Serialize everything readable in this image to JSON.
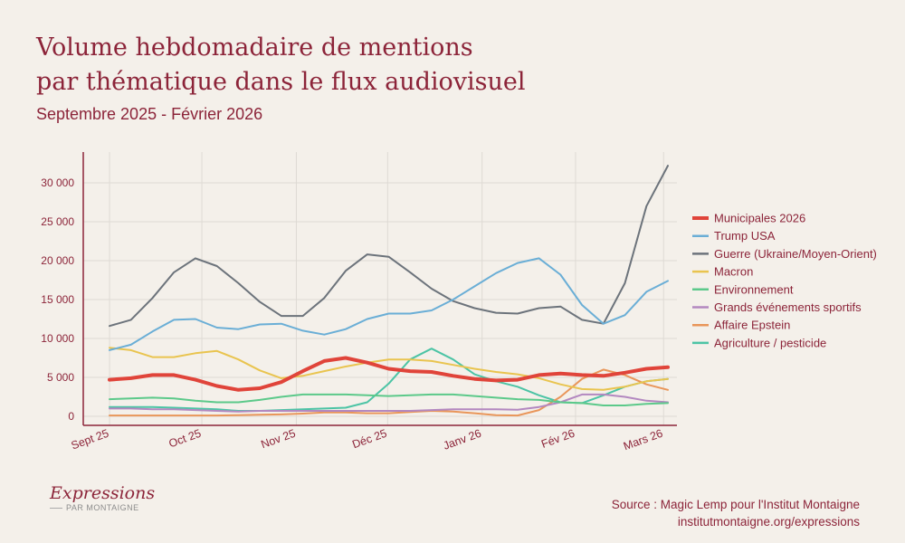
{
  "title_line1": "Volume hebdomadaire de mentions",
  "title_line2": "par thématique dans le flux audiovisuel",
  "subtitle": "Septembre 2025 - Février 2026",
  "source_line1": "Source : Magic Lemp pour l'Institut Montaigne",
  "source_line2": "institutmontaigne.org/expressions",
  "logo": {
    "main": "Expressions",
    "sub": "PAR MONTAIGNE"
  },
  "chart_data": {
    "type": "line",
    "x_tick_labels": [
      "Sept 25",
      "Oct 25",
      "Nov 25",
      "Déc 25",
      "Janv 26",
      "Fév 26",
      "Mars 26"
    ],
    "x_tick_positions": [
      0,
      4.3,
      8.7,
      12.95,
      17.35,
      21.7,
      25.8
    ],
    "y_ticks": [
      0,
      5000,
      10000,
      15000,
      20000,
      25000,
      30000
    ],
    "y_tick_labels": [
      "0",
      "5 000",
      "10 000",
      "15 000",
      "20 000",
      "25 000",
      "30 000"
    ],
    "ylim": [
      0,
      32500
    ],
    "grid": true,
    "legend_position": "right",
    "x_unit": "week index (weekly points, Sept 2025 – early March 2026)",
    "series": [
      {
        "name": "Municipales 2026",
        "color": "#e0443a",
        "emphasis": true,
        "values": [
          4700,
          4900,
          5300,
          5300,
          4700,
          3900,
          3400,
          3600,
          4400,
          5800,
          7100,
          7500,
          6900,
          6100,
          5800,
          5700,
          5200,
          4800,
          4600,
          4700,
          5300,
          5500,
          5300,
          5200,
          5600,
          6100,
          6300
        ]
      },
      {
        "name": "Trump USA",
        "color": "#6aaed6",
        "values": [
          8500,
          9200,
          10900,
          12400,
          12500,
          11400,
          11200,
          11800,
          11900,
          11000,
          10500,
          11200,
          12500,
          13200,
          13200,
          13600,
          15000,
          16700,
          18400,
          19700,
          20300,
          18200,
          14300,
          11900,
          13000,
          16000,
          17400
        ]
      },
      {
        "name": "Guerre (Ukraine/Moyen-Orient)",
        "color": "#6c737b",
        "values": [
          11600,
          12400,
          15200,
          18500,
          20300,
          19300,
          17100,
          14700,
          12900,
          12900,
          15200,
          18700,
          20800,
          20500,
          18500,
          16400,
          14800,
          13900,
          13300,
          13200,
          13900,
          14100,
          12400,
          11900,
          17100,
          27000,
          32200
        ]
      },
      {
        "name": "Macron",
        "color": "#e9c44f",
        "values": [
          8800,
          8500,
          7600,
          7600,
          8100,
          8400,
          7300,
          5900,
          4900,
          5200,
          5800,
          6400,
          6900,
          7300,
          7300,
          7100,
          6600,
          6100,
          5700,
          5400,
          4900,
          4100,
          3500,
          3400,
          3800,
          4500,
          4800
        ]
      },
      {
        "name": "Environnement",
        "color": "#5cc98a",
        "values": [
          2200,
          2300,
          2400,
          2300,
          2000,
          1800,
          1800,
          2100,
          2500,
          2800,
          2800,
          2800,
          2700,
          2600,
          2700,
          2800,
          2800,
          2600,
          2400,
          2200,
          2100,
          1800,
          1700,
          1400,
          1400,
          1600,
          1700
        ]
      },
      {
        "name": "Grands événements sportifs",
        "color": "#b388c0",
        "values": [
          1000,
          1000,
          900,
          900,
          800,
          700,
          600,
          700,
          700,
          700,
          700,
          700,
          700,
          700,
          700,
          800,
          900,
          900,
          900,
          850,
          1200,
          1800,
          2800,
          2800,
          2500,
          2000,
          1800
        ]
      },
      {
        "name": "Affaire Epstein",
        "color": "#e9965a",
        "values": [
          100,
          100,
          100,
          100,
          100,
          100,
          150,
          200,
          250,
          350,
          500,
          500,
          400,
          400,
          550,
          700,
          600,
          400,
          150,
          100,
          800,
          2500,
          4800,
          6000,
          5300,
          4100,
          3400
        ]
      },
      {
        "name": "Agriculture / pesticide",
        "color": "#4cc4a5",
        "values": [
          1200,
          1200,
          1200,
          1100,
          1000,
          900,
          700,
          700,
          800,
          900,
          1000,
          1100,
          1800,
          4200,
          7300,
          8700,
          7300,
          5400,
          4500,
          3800,
          2700,
          1800,
          1700,
          2700,
          3800,
          4500,
          4800
        ]
      }
    ]
  }
}
